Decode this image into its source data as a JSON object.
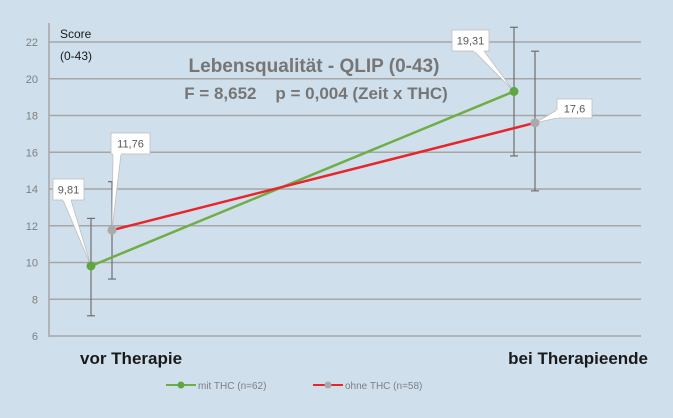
{
  "chart_data": {
    "type": "line",
    "title": "Lebensqualität - QLIP (0-43)",
    "subtitle": "F = 8,652    p = 0,004 (Zeit x THC)",
    "xlabel": "",
    "ylabel": "Score\n(0-43)",
    "ylabel_lines": [
      "Score",
      "(0-43)"
    ],
    "categories": [
      "vor Therapie",
      "bei Therapieende"
    ],
    "ylim": [
      6,
      22
    ],
    "yticks": [
      6,
      8,
      10,
      12,
      14,
      16,
      18,
      20,
      22
    ],
    "ytick_labels": [
      "6",
      "8",
      "10",
      "12",
      "14",
      "16",
      "18",
      "20",
      "22"
    ],
    "grid": true,
    "legend_position": "bottom",
    "series": [
      {
        "name": "mit THC (n=62)",
        "line_color": "#70ad47",
        "marker_color": "#5fa640",
        "values": [
          9.81,
          19.31
        ],
        "value_labels": [
          "9,81",
          "19,31"
        ],
        "error_low": [
          7.1,
          15.8
        ],
        "error_high": [
          12.4,
          22.8
        ]
      },
      {
        "name": "ohne THC (n=58)",
        "line_color": "#e8252b",
        "marker_color": "#aaaaaa",
        "values": [
          11.76,
          17.6
        ],
        "value_labels": [
          "11,76",
          "17,6"
        ],
        "error_low": [
          9.1,
          13.9
        ],
        "error_high": [
          14.4,
          21.5
        ]
      }
    ]
  },
  "colors": {
    "background": "#cfe0ec",
    "gridline": "#a6a6a6",
    "error_bar": "#6f6f6f"
  }
}
